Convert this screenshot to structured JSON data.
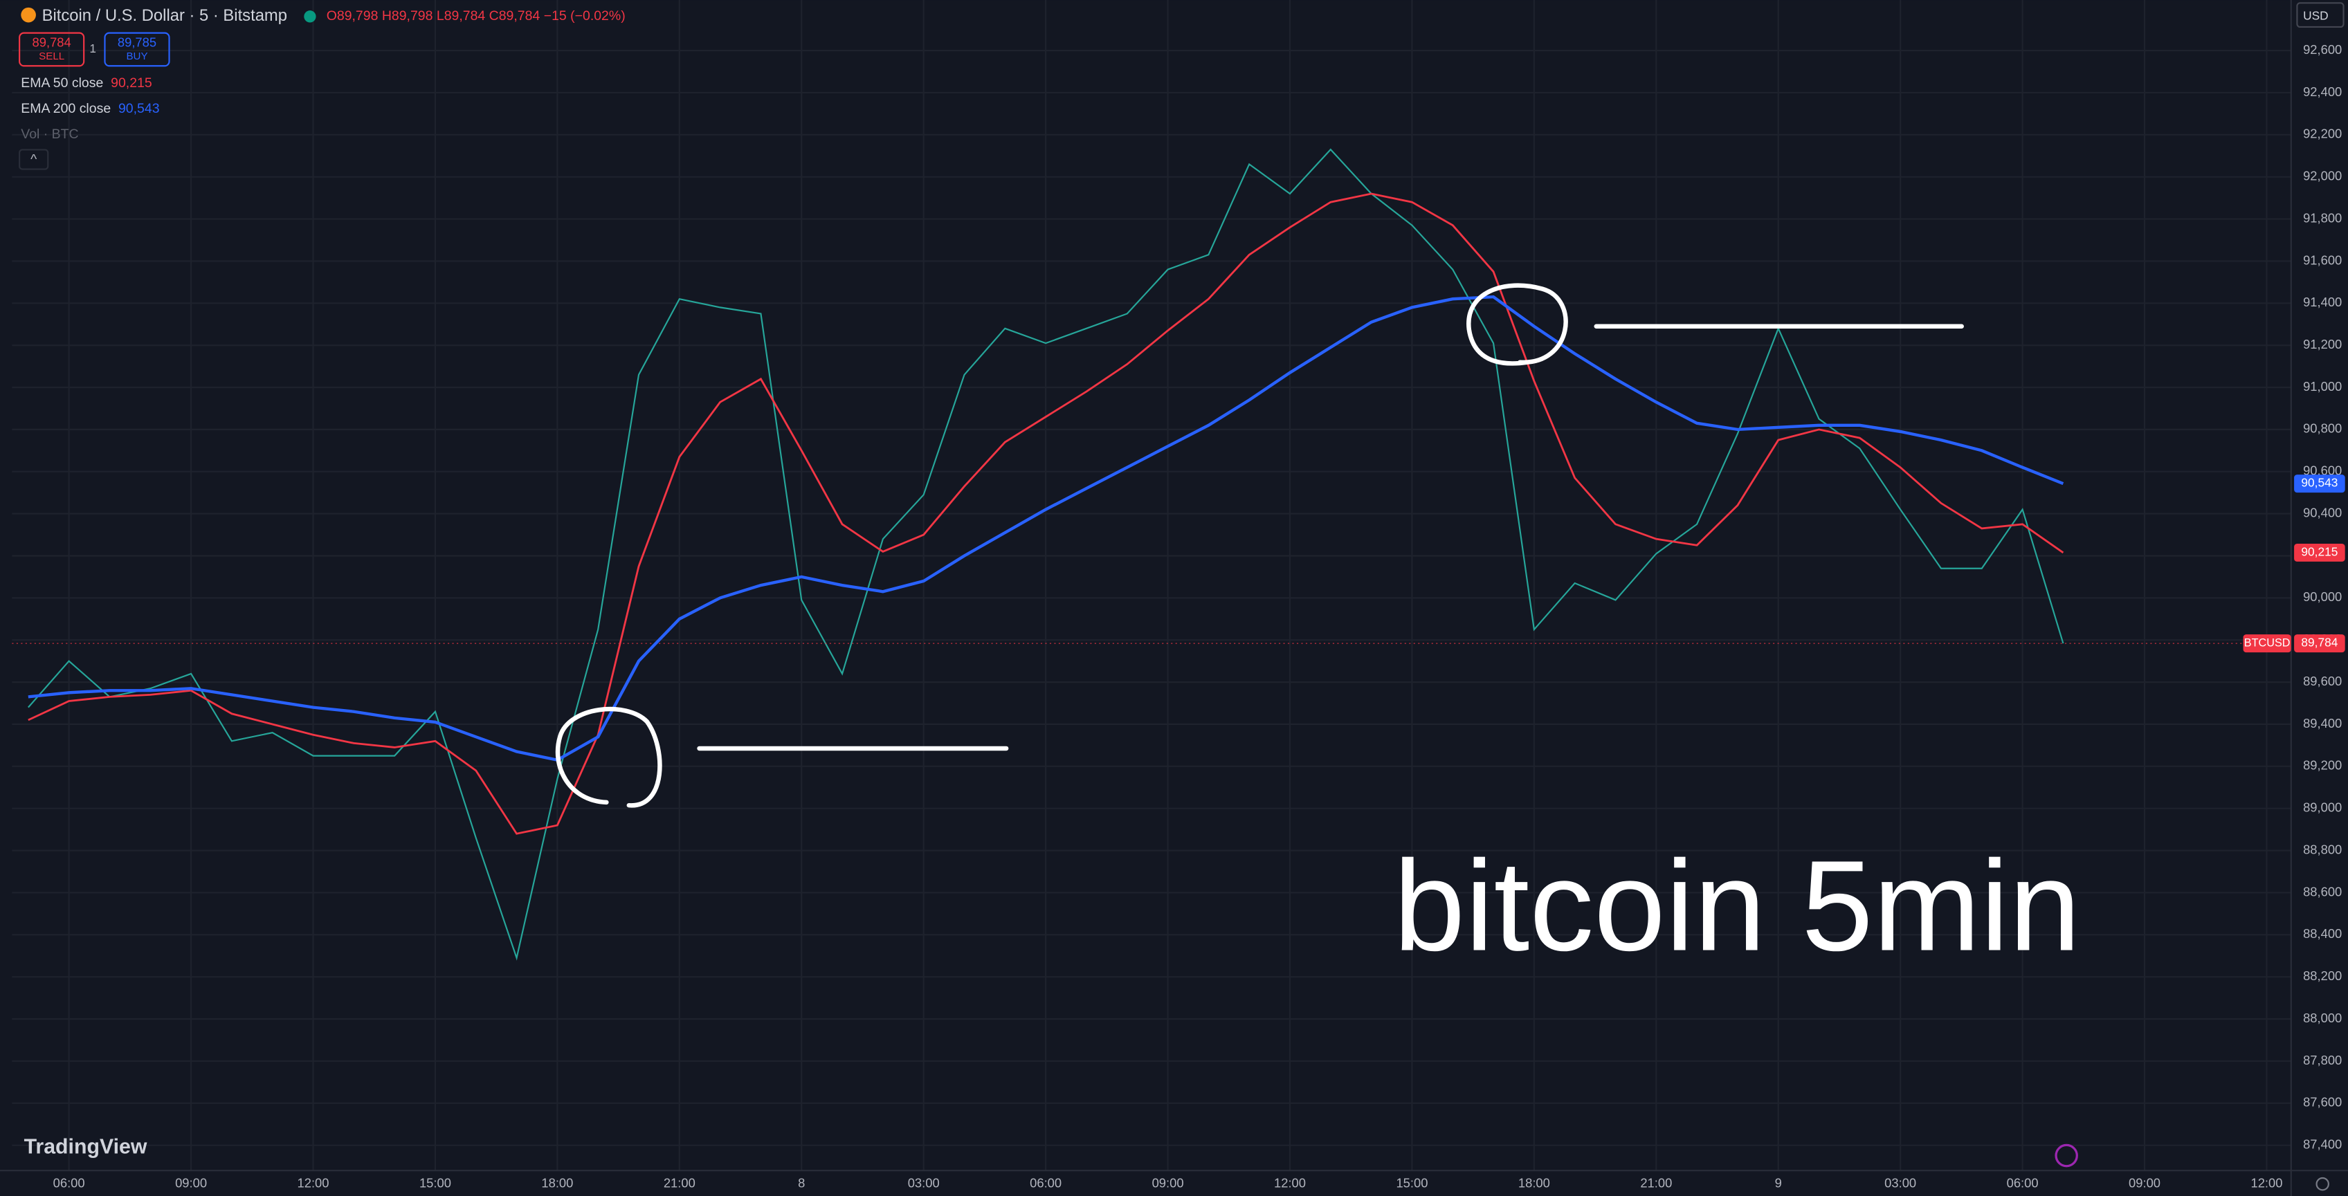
{
  "header": {
    "symbol": "Bitcoin / U.S. Dollar · 5 · Bitstamp",
    "ohlc": [
      "O89,798",
      "H89,798",
      "L89,784",
      "C89,784",
      "−15 (−0.02%)"
    ],
    "sell": {
      "price": "89,784",
      "label": "SELL"
    },
    "quantity": "1",
    "buy": {
      "price": "89,785",
      "label": "BUY"
    },
    "volume": "Vol · BTC",
    "currency": "USD",
    "logo": "TradingView"
  },
  "chart_data": {
    "type": "line",
    "annotation": "bitcoin 5min",
    "x": [
      5,
      6,
      7,
      8,
      9,
      10,
      11,
      12,
      13,
      14,
      15,
      16,
      17,
      18,
      19,
      20,
      21,
      22,
      23,
      24,
      25,
      26,
      27,
      28,
      29,
      30,
      31,
      32,
      33,
      34,
      35,
      36,
      37,
      38,
      39,
      40,
      41,
      42,
      43,
      44,
      45,
      46,
      47,
      48,
      49,
      50,
      51,
      52,
      53,
      54,
      55
    ],
    "series": [
      {
        "name": "BTCUSD",
        "color": "#26a69a",
        "last_label": "89,784",
        "values": [
          89480,
          89700,
          89530,
          89570,
          89640,
          89320,
          89360,
          89250,
          89250,
          89250,
          89460,
          88860,
          88290,
          89140,
          89850,
          91060,
          91420,
          91380,
          91350,
          89990,
          89640,
          90280,
          90490,
          91060,
          91280,
          91210,
          91280,
          91350,
          91560,
          91630,
          92060,
          91920,
          92130,
          91920,
          91770,
          91560,
          91210,
          89850,
          90070,
          89990,
          90210,
          90350,
          90780,
          91280,
          90850,
          90710,
          90420,
          90140,
          90140,
          90420,
          89784
        ]
      },
      {
        "name": "EMA 50 close",
        "color": "#f23645",
        "last_label": "90,215",
        "values": [
          89420,
          89510,
          89530,
          89540,
          89560,
          89450,
          89400,
          89350,
          89310,
          89290,
          89320,
          89180,
          88880,
          88920,
          89350,
          90150,
          90670,
          90930,
          91040,
          90700,
          90350,
          90220,
          90300,
          90530,
          90740,
          90860,
          90980,
          91110,
          91270,
          91420,
          91630,
          91760,
          91880,
          91920,
          91880,
          91770,
          91550,
          91030,
          90570,
          90350,
          90280,
          90250,
          90440,
          90750,
          90800,
          90760,
          90620,
          90450,
          90330,
          90350,
          90215
        ]
      },
      {
        "name": "EMA 200 close",
        "color": "#2962ff",
        "last_label": "90,543",
        "values": [
          89530,
          89550,
          89560,
          89560,
          89570,
          89540,
          89510,
          89480,
          89460,
          89430,
          89410,
          89340,
          89270,
          89230,
          89340,
          89700,
          89900,
          90000,
          90060,
          90100,
          90060,
          90030,
          90080,
          90200,
          90310,
          90420,
          90520,
          90620,
          90720,
          90820,
          90940,
          91070,
          91190,
          91310,
          91380,
          91420,
          91430,
          91290,
          91160,
          91040,
          90930,
          90830,
          90800,
          90810,
          90820,
          90820,
          90790,
          90750,
          90700,
          90620,
          90543
        ]
      }
    ],
    "xlim": [
      4.6,
      60.6
    ],
    "xticks": [
      {
        "value": 6,
        "label": "06:00"
      },
      {
        "value": 9,
        "label": "09:00"
      },
      {
        "value": 12,
        "label": "12:00"
      },
      {
        "value": 15,
        "label": "15:00"
      },
      {
        "value": 18,
        "label": "18:00"
      },
      {
        "value": 21,
        "label": "21:00"
      },
      {
        "value": 24,
        "label": "8"
      },
      {
        "value": 27,
        "label": "03:00"
      },
      {
        "value": 30,
        "label": "06:00"
      },
      {
        "value": 33,
        "label": "09:00"
      },
      {
        "value": 36,
        "label": "12:00"
      },
      {
        "value": 39,
        "label": "15:00"
      },
      {
        "value": 42,
        "label": "18:00"
      },
      {
        "value": 45,
        "label": "21:00"
      },
      {
        "value": 48,
        "label": "9"
      },
      {
        "value": 51,
        "label": "03:00"
      },
      {
        "value": 54,
        "label": "06:00"
      },
      {
        "value": 57,
        "label": "09:00"
      },
      {
        "value": 60,
        "label": "12:00"
      }
    ],
    "ylim": [
      87280,
      92840
    ],
    "yticks": [
      {
        "value": 87400,
        "label": "87,400"
      },
      {
        "value": 87600,
        "label": "87,600"
      },
      {
        "value": 87800,
        "label": "87,800"
      },
      {
        "value": 88000,
        "label": "88,000"
      },
      {
        "value": 88200,
        "label": "88,200"
      },
      {
        "value": 88400,
        "label": "88,400"
      },
      {
        "value": 88600,
        "label": "88,600"
      },
      {
        "value": 88800,
        "label": "88,800"
      },
      {
        "value": 89000,
        "label": "89,000"
      },
      {
        "value": 89200,
        "label": "89,200"
      },
      {
        "value": 89400,
        "label": "89,400"
      },
      {
        "value": 89600,
        "label": "89,600"
      },
      {
        "value": 89800,
        "label": "89,800"
      },
      {
        "value": 90000,
        "label": "90,000"
      },
      {
        "value": 90200,
        "label": "90,200"
      },
      {
        "value": 90400,
        "label": "90,400"
      },
      {
        "value": 90600,
        "label": "90,600"
      },
      {
        "value": 90800,
        "label": "90,800"
      },
      {
        "value": 91000,
        "label": "91,000"
      },
      {
        "value": 91200,
        "label": "91,200"
      },
      {
        "value": 91400,
        "label": "91,400"
      },
      {
        "value": 91600,
        "label": "91,600"
      },
      {
        "value": 91800,
        "label": "91,800"
      },
      {
        "value": 92000,
        "label": "92,000"
      },
      {
        "value": 92200,
        "label": "92,200"
      },
      {
        "value": 92400,
        "label": "92,400"
      },
      {
        "value": 92600,
        "label": "92,600"
      }
    ],
    "grid": true
  }
}
